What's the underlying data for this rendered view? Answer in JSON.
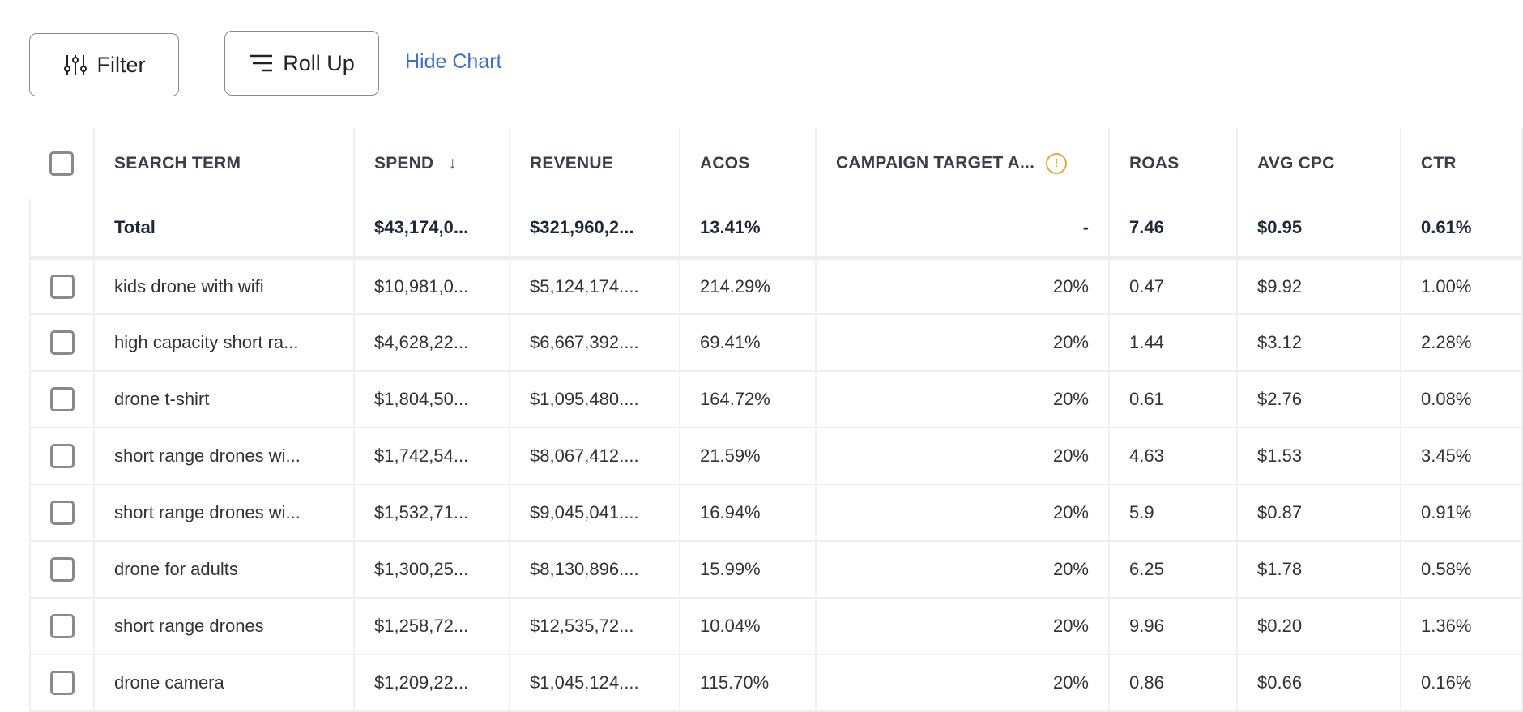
{
  "toolbar": {
    "filter_label": "Filter",
    "rollup_label": "Roll Up",
    "hide_chart_label": "Hide Chart"
  },
  "table": {
    "columns": [
      "SEARCH TERM",
      "SPEND",
      "REVENUE",
      "ACOS",
      "CAMPAIGN TARGET A...",
      "ROAS",
      "AVG CPC",
      "CTR"
    ],
    "sort": {
      "column": "SPEND",
      "direction": "descending"
    },
    "total": [
      "Total",
      "$43,174,0...",
      "$321,960,2...",
      "13.41%",
      "-",
      "7.46",
      "$0.95",
      "0.61%"
    ],
    "rows": [
      [
        "kids drone with wifi",
        "$10,981,0...",
        "$5,124,174....",
        "214.29%",
        "20%",
        "0.47",
        "$9.92",
        "1.00%"
      ],
      [
        "high capacity short ra...",
        "$4,628,22...",
        "$6,667,392....",
        "69.41%",
        "20%",
        "1.44",
        "$3.12",
        "2.28%"
      ],
      [
        "drone t-shirt",
        "$1,804,50...",
        "$1,095,480....",
        "164.72%",
        "20%",
        "0.61",
        "$2.76",
        "0.08%"
      ],
      [
        "short range drones wi...",
        "$1,742,54...",
        "$8,067,412....",
        "21.59%",
        "20%",
        "4.63",
        "$1.53",
        "3.45%"
      ],
      [
        "short range drones wi...",
        "$1,532,71...",
        "$9,045,041....",
        "16.94%",
        "20%",
        "5.9",
        "$0.87",
        "0.91%"
      ],
      [
        "drone for adults",
        "$1,300,25...",
        "$8,130,896....",
        "15.99%",
        "20%",
        "6.25",
        "$1.78",
        "0.58%"
      ],
      [
        "short range drones",
        "$1,258,72...",
        "$12,535,72...",
        "10.04%",
        "20%",
        "9.96",
        "$0.20",
        "1.36%"
      ],
      [
        "drone camera",
        "$1,209,22...",
        "$1,045,124....",
        "115.70%",
        "20%",
        "0.86",
        "$0.66",
        "0.16%"
      ]
    ]
  },
  "colors": {
    "link": "#3b6fd4",
    "warning": "#e8a93a"
  }
}
